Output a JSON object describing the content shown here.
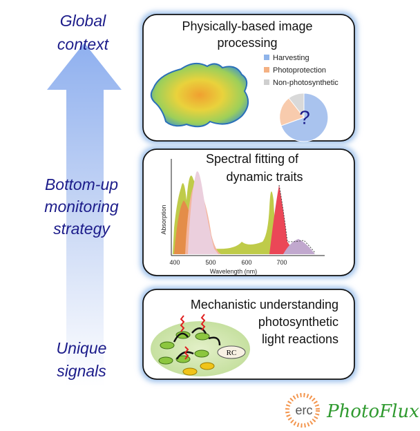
{
  "left_labels": [
    {
      "lines": [
        "Global",
        "context"
      ]
    },
    {
      "lines": [
        "Bottom-up",
        "monitoring",
        "strategy"
      ]
    },
    {
      "lines": [
        "Unique",
        "signals"
      ]
    }
  ],
  "panels": [
    {
      "title_lines": [
        "Physically-based image",
        "processing"
      ],
      "legend": [
        "Harvesting",
        "Photoprotection",
        "Non-photosynthetic"
      ],
      "pie_label": "?"
    },
    {
      "title_lines": [
        "Spectral fitting of",
        "dynamic traits"
      ],
      "y_label": "Absorption",
      "x_label": "Wavelength (nm)",
      "x_ticks": [
        "400",
        "500",
        "600",
        "700"
      ]
    },
    {
      "title_lines": [
        "Mechanistic understanding",
        "photosynthetic",
        "light reactions"
      ],
      "node_label": "RC"
    }
  ],
  "logos": [
    "erc",
    "PhotoFlux"
  ]
}
